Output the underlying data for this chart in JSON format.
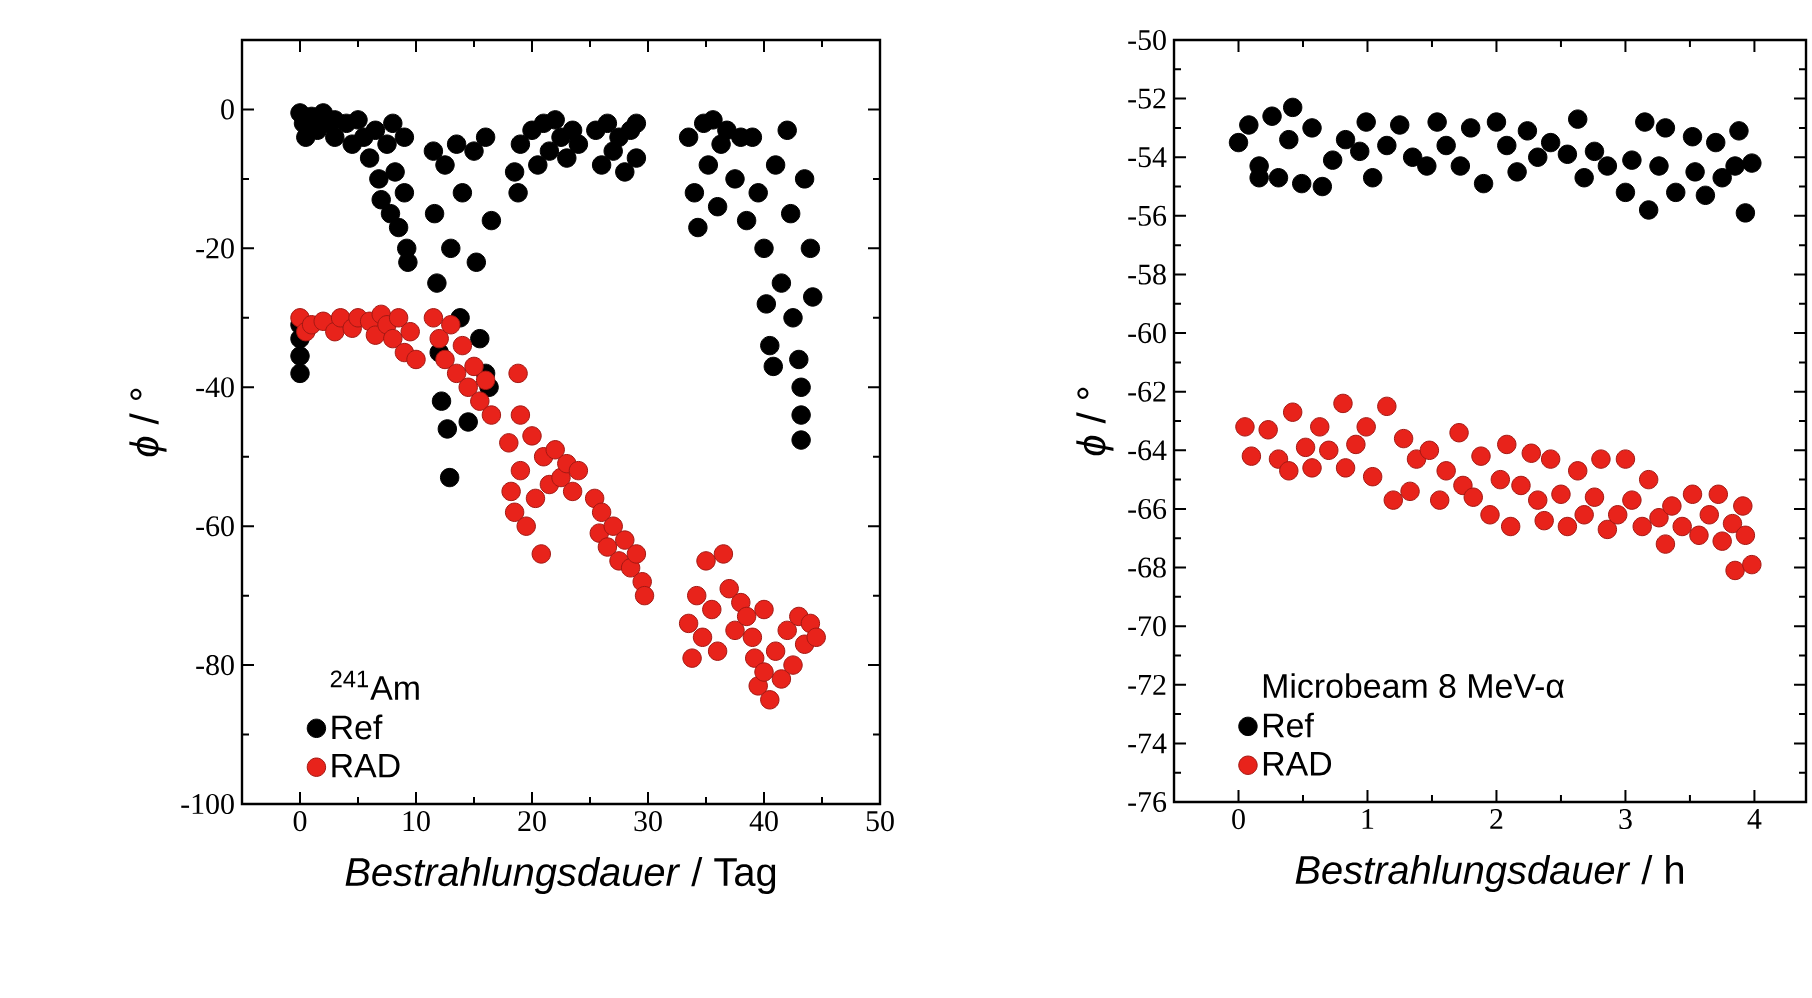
{
  "chart_data": [
    {
      "type": "scatter",
      "xlabel": "*Bestrahlungsdauer* / Tag",
      "ylabel": "*ϕ* / °",
      "legend_title": "$^{241}$Am",
      "xlim": [
        -5,
        50
      ],
      "ylim": [
        -100,
        10
      ],
      "xticks": [
        0,
        10,
        20,
        30,
        40,
        50
      ],
      "yticks": [
        -100,
        -80,
        -60,
        -40,
        -20,
        0
      ],
      "legend": "bottom left",
      "grid": false,
      "series": [
        {
          "name": "Ref",
          "color": "#000000",
          "x": [
            0,
            0.3,
            0.5,
            1,
            1.5,
            2,
            2.5,
            3,
            3,
            4,
            4.5,
            5,
            5.5,
            6,
            6.5,
            6.8,
            7,
            7.5,
            7.8,
            8,
            8.2,
            8.5,
            9,
            9,
            9.2,
            9.3,
            0,
            0,
            0,
            0,
            11.5,
            11.6,
            11.8,
            12,
            12.2,
            12.5,
            12.7,
            12.9,
            13,
            13.5,
            13.8,
            14,
            14.5,
            15,
            15.2,
            15.5,
            16,
            16,
            16.3,
            16.5,
            18.5,
            18.8,
            19,
            20,
            20.5,
            21,
            21.5,
            22,
            22.5,
            23,
            23.5,
            24,
            25.5,
            26,
            26.5,
            27,
            27.5,
            28,
            28.5,
            29,
            29,
            33.5,
            34,
            34.3,
            34.8,
            35.2,
            35.6,
            36,
            36.3,
            36.8,
            37.5,
            38,
            38.5,
            39,
            39.5,
            40,
            40.2,
            40.5,
            40.8,
            41,
            41.5,
            42,
            42.3,
            42.5,
            43,
            43.2,
            43.2,
            43.2,
            43.5,
            44,
            44.2
          ],
          "values": [
            -0.5,
            -2,
            -4,
            -1,
            -3,
            -0.5,
            -2,
            -1.5,
            -4,
            -2,
            -5,
            -1.5,
            -4,
            -7,
            -3,
            -10,
            -13,
            -5,
            -15,
            -2,
            -9,
            -17,
            -4,
            -12,
            -20,
            -22,
            -31,
            -33,
            -35.5,
            -38,
            -6,
            -15,
            -25,
            -35,
            -42,
            -8,
            -46,
            -53,
            -20,
            -5,
            -30,
            -12,
            -45,
            -6,
            -22,
            -33,
            -4,
            -38,
            -40,
            -16,
            -9,
            -12,
            -5,
            -3,
            -8,
            -2,
            -6,
            -1.5,
            -4,
            -7,
            -3,
            -5,
            -3,
            -8,
            -2,
            -6,
            -4,
            -9,
            -3,
            -7,
            -2,
            -4,
            -12,
            -17,
            -2,
            -8,
            -1.5,
            -14,
            -5,
            -3,
            -10,
            -4,
            -16,
            -4,
            -12,
            -20,
            -28,
            -34,
            -37,
            -8,
            -25,
            -3,
            -15,
            -30,
            -36,
            -40,
            -44,
            -47.6,
            -10,
            -20,
            -27
          ]
        },
        {
          "name": "RAD",
          "color": "#e8231b",
          "x": [
            0,
            0.5,
            1,
            2,
            3,
            3.5,
            4.5,
            5,
            6,
            6.5,
            7,
            7.5,
            8,
            8.5,
            9,
            9.5,
            10,
            11.5,
            12,
            12.5,
            13,
            13.5,
            14,
            14.5,
            15,
            15.5,
            16,
            16.5,
            18.8,
            18,
            18.2,
            18.5,
            19,
            19,
            19.5,
            20,
            20.3,
            20.8,
            21,
            21.5,
            22,
            22.5,
            23,
            23.5,
            24,
            25.4,
            25.8,
            26,
            26.5,
            27,
            27.5,
            28,
            28.5,
            29,
            29.5,
            29.7,
            33.5,
            33.8,
            34.2,
            34.7,
            35,
            35.5,
            36,
            36.5,
            37,
            37.5,
            38,
            38.5,
            39,
            40,
            39.2,
            39.5,
            40,
            40.5,
            41,
            41.5,
            42,
            42.5,
            43,
            43.5,
            44,
            44.5
          ],
          "values": [
            -30,
            -32,
            -31,
            -30.5,
            -32,
            -30,
            -31.5,
            -30,
            -30.5,
            -32.5,
            -29.5,
            -31,
            -33,
            -30,
            -35,
            -32,
            -36,
            -30,
            -33,
            -36,
            -31,
            -38,
            -34,
            -40,
            -37,
            -42,
            -39,
            -44,
            -38,
            -48,
            -55,
            -58,
            -44,
            -52,
            -60,
            -47,
            -56,
            -64,
            -50,
            -54,
            -49,
            -53,
            -51,
            -55,
            -52,
            -56,
            -61,
            -58,
            -63,
            -60,
            -65,
            -62,
            -66,
            -64,
            -68,
            -70,
            -74,
            -79,
            -70,
            -76,
            -65,
            -72,
            -78,
            -64,
            -69,
            -75,
            -71,
            -73,
            -76,
            -72,
            -79,
            -83,
            -81,
            -85,
            -78,
            -82,
            -75,
            -80,
            -73,
            -77,
            -74,
            -76
          ]
        }
      ]
    },
    {
      "type": "scatter",
      "xlabel": "*Bestrahlungsdauer* / h",
      "ylabel": "*ϕ* / °",
      "legend_title": "Microbeam 8 MeV-α",
      "xlim": [
        -0.5,
        4.4
      ],
      "ylim": [
        -76,
        -50
      ],
      "xticks": [
        0,
        1,
        2,
        3,
        4
      ],
      "yticks": [
        -76,
        -74,
        -72,
        -70,
        -68,
        -66,
        -64,
        -62,
        -60,
        -58,
        -56,
        -54,
        -52,
        -50
      ],
      "legend": "bottom left",
      "grid": false,
      "series": [
        {
          "name": "Ref",
          "color": "#000000",
          "x": [
            0,
            0.08,
            0.16,
            0.16,
            0.26,
            0.31,
            0.39,
            0.42,
            0.49,
            0.57,
            0.65,
            0.73,
            0.83,
            0.94,
            0.99,
            1.04,
            1.15,
            1.25,
            1.35,
            1.46,
            1.54,
            1.61,
            1.72,
            1.8,
            1.9,
            2.0,
            2.08,
            2.16,
            2.24,
            2.32,
            2.42,
            2.55,
            2.63,
            2.68,
            2.76,
            2.86,
            3.0,
            3.05,
            3.15,
            3.18,
            3.26,
            3.31,
            3.39,
            3.52,
            3.54,
            3.62,
            3.7,
            3.75,
            3.85,
            3.88,
            3.93,
            3.98
          ],
          "values": [
            -53.5,
            -52.9,
            -54.3,
            -54.7,
            -52.6,
            -54.7,
            -53.4,
            -52.3,
            -54.9,
            -53,
            -55,
            -54.1,
            -53.4,
            -53.8,
            -52.8,
            -54.7,
            -53.6,
            -52.9,
            -54,
            -54.3,
            -52.8,
            -53.6,
            -54.3,
            -53,
            -54.9,
            -52.8,
            -53.6,
            -54.5,
            -53.1,
            -54,
            -53.5,
            -53.9,
            -52.7,
            -54.7,
            -53.8,
            -54.3,
            -55.2,
            -54.1,
            -52.8,
            -55.8,
            -54.3,
            -53,
            -55.2,
            -53.3,
            -54.5,
            -55.3,
            -53.5,
            -54.7,
            -54.3,
            -53.1,
            -55.9,
            -54.2
          ]
        },
        {
          "name": "RAD",
          "color": "#e8231b",
          "x": [
            0.05,
            0.1,
            0.23,
            0.31,
            0.39,
            0.42,
            0.52,
            0.57,
            0.63,
            0.7,
            0.81,
            0.83,
            0.91,
            0.99,
            1.04,
            1.15,
            1.2,
            1.28,
            1.33,
            1.38,
            1.48,
            1.56,
            1.61,
            1.71,
            1.74,
            1.82,
            1.88,
            1.95,
            2.03,
            2.08,
            2.11,
            2.19,
            2.27,
            2.32,
            2.37,
            2.42,
            2.5,
            2.55,
            2.63,
            2.68,
            2.76,
            2.81,
            2.86,
            2.94,
            3.0,
            3.05,
            3.13,
            3.18,
            3.26,
            3.31,
            3.36,
            3.44,
            3.52,
            3.57,
            3.65,
            3.72,
            3.75,
            3.83,
            3.91,
            3.93,
            3.85,
            3.98
          ],
          "values": [
            -63.2,
            -64.2,
            -63.3,
            -64.3,
            -64.7,
            -62.7,
            -63.9,
            -64.6,
            -63.2,
            -64,
            -62.4,
            -64.6,
            -63.8,
            -63.2,
            -64.9,
            -62.5,
            -65.7,
            -63.6,
            -65.4,
            -64.3,
            -64,
            -65.7,
            -64.7,
            -63.4,
            -65.2,
            -65.6,
            -64.2,
            -66.2,
            -65,
            -63.8,
            -66.6,
            -65.2,
            -64.1,
            -65.7,
            -66.4,
            -64.3,
            -65.5,
            -66.6,
            -64.7,
            -66.2,
            -65.6,
            -64.3,
            -66.7,
            -66.2,
            -64.3,
            -65.7,
            -66.6,
            -65,
            -66.3,
            -67.2,
            -65.9,
            -66.6,
            -65.5,
            -66.9,
            -66.2,
            -65.5,
            -67.1,
            -66.5,
            -65.9,
            -66.9,
            -68.1,
            -67.9
          ]
        }
      ]
    }
  ]
}
